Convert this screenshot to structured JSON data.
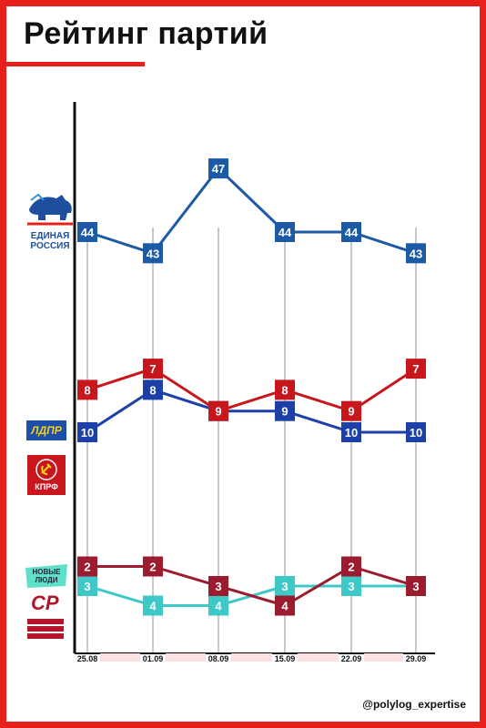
{
  "title": "Рейтинг партий",
  "credit": "@polylog_expertise",
  "logos": {
    "er": "ЕДИНАЯ РОССИЯ",
    "ldpr": "ЛДПР",
    "kprf": "КПРФ",
    "nl": "НОВЫЕ ЛЮДИ",
    "sr": "СР"
  },
  "colors": {
    "frame": "#e8201c",
    "er": "#1d5aa6",
    "ldpr": "#1d3fa8",
    "kprf": "#c8161d",
    "nl": "#3ec8c8",
    "sr": "#9b1c2e",
    "gridline": "#c8c8c8",
    "axis": "#111111"
  },
  "chart_data": {
    "type": "line",
    "title": "Рейтинг партий",
    "categories": [
      "25.08",
      "01.09",
      "08.09",
      "15.09",
      "22.09",
      "29.09"
    ],
    "series": [
      {
        "key": "er",
        "values": [
          44,
          43,
          47,
          44,
          44,
          43
        ]
      },
      {
        "key": "ldpr",
        "values": [
          10,
          8,
          9,
          9,
          10,
          10
        ]
      },
      {
        "key": "kprf",
        "values": [
          8,
          7,
          9,
          8,
          9,
          7
        ]
      },
      {
        "key": "nl",
        "values": [
          3,
          4,
          4,
          3,
          3,
          3
        ]
      },
      {
        "key": "sr",
        "values": [
          2,
          2,
          3,
          4,
          2,
          3
        ]
      }
    ],
    "grid": true,
    "legend": "left, party logos"
  }
}
